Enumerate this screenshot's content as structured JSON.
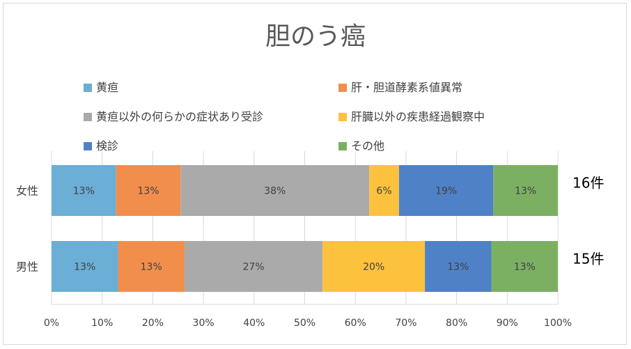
{
  "chart_data": {
    "type": "bar",
    "orientation": "horizontal",
    "stacked": "percent",
    "title": "胆のう癌",
    "categories": [
      "女性",
      "男性"
    ],
    "category_counts": [
      "16件",
      "15件"
    ],
    "series": [
      {
        "name": "黄疸",
        "color": "#6baed6",
        "values": [
          13,
          13
        ],
        "labels": [
          "13%",
          "13%"
        ]
      },
      {
        "name": "肝・胆道酵素系値異常",
        "color": "#f28e4c",
        "values": [
          13,
          13
        ],
        "labels": [
          "13%",
          "13%"
        ]
      },
      {
        "name": "黄疸以外の何らかの症状あり受診",
        "color": "#aaaaaa",
        "values": [
          38,
          27
        ],
        "labels": [
          "38%",
          "27%"
        ]
      },
      {
        "name": "肝臓以外の疾患経過観察中",
        "color": "#fcc23e",
        "values": [
          6,
          20
        ],
        "labels": [
          "6%",
          "20%"
        ]
      },
      {
        "name": "検診",
        "color": "#4f81c7",
        "values": [
          19,
          13
        ],
        "labels": [
          "19%",
          "13%"
        ]
      },
      {
        "name": "その他",
        "color": "#7bb062",
        "values": [
          13,
          13
        ],
        "labels": [
          "13%",
          "13%"
        ]
      }
    ],
    "xlim": [
      0,
      100
    ],
    "x_ticks": [
      "0%",
      "10%",
      "20%",
      "30%",
      "40%",
      "50%",
      "60%",
      "70%",
      "80%",
      "90%",
      "100%"
    ],
    "xlabel": "",
    "ylabel": "",
    "legend_position": "top",
    "grid": true
  }
}
